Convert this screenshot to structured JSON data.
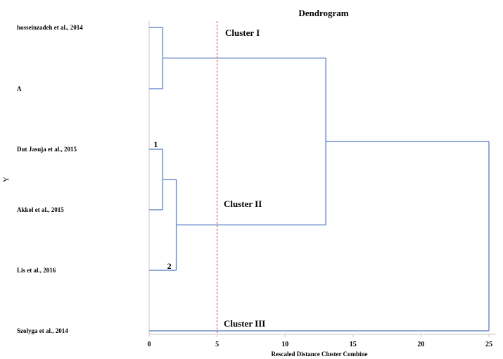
{
  "chart_data": {
    "type": "dendrogram",
    "title": "Dendrogram",
    "xlabel": "Rescaled Distance Cluster Combine",
    "ylabel": "Y",
    "xlim": [
      0,
      25
    ],
    "xticks": [
      0,
      5,
      10,
      15,
      20,
      25
    ],
    "leaves": [
      "hosseinzadeh et al., 2014",
      "A",
      "Dut Jasuja et al., 2015",
      "Akkol et al., 2015",
      "Lis et al., 2016",
      "Szolyga et al., 2014"
    ],
    "merges": [
      {
        "left": 0,
        "right": 1,
        "distance": 1
      },
      {
        "left": 2,
        "right": 3,
        "distance": 1,
        "label": "1"
      },
      {
        "left": 7,
        "right": 4,
        "distance": 2,
        "label": "2"
      },
      {
        "left": 6,
        "right": 8,
        "distance": 13
      },
      {
        "left": 9,
        "right": 5,
        "distance": 25
      }
    ],
    "cut_line": {
      "x": 5,
      "color": "#e8403a"
    },
    "annotations": [
      "Cluster I",
      "Cluster II",
      "Cluster III"
    ],
    "colors": {
      "tree": "#6f8fcc",
      "axis": "#c7c7c7",
      "text": "#000000"
    },
    "grid": false
  }
}
